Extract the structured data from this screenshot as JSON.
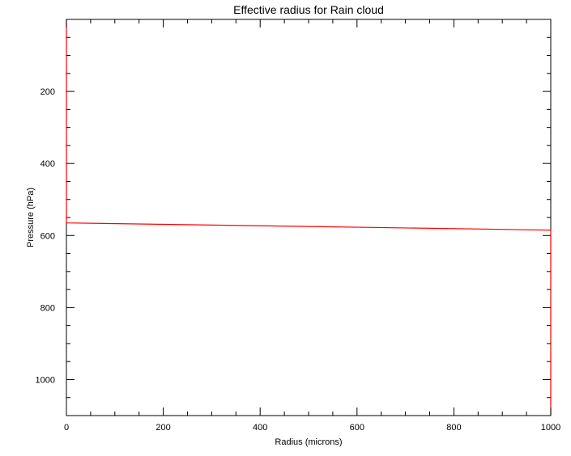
{
  "chart_data": {
    "type": "line",
    "title": "Effective radius for Rain cloud",
    "xlabel": "Radius (microns)",
    "ylabel": "Pressure (hPa)",
    "xlim": [
      0,
      1000
    ],
    "ylim": [
      1100,
      0
    ],
    "y_inverted": true,
    "grid": false,
    "legend": "none",
    "x_ticks": [
      0,
      200,
      400,
      600,
      800,
      1000
    ],
    "x_tick_labels": [
      "0",
      "200",
      "400",
      "600",
      "800",
      "1000"
    ],
    "y_ticks": [
      200,
      400,
      600,
      800,
      1000
    ],
    "y_tick_labels": [
      "200",
      "400",
      "600",
      "800",
      "1000"
    ],
    "series": [
      {
        "color": "#ff0000",
        "x": [
          0,
          0,
          1000,
          1000
        ],
        "y": [
          0,
          565,
          585,
          1100
        ]
      }
    ]
  },
  "colors": {
    "axis": "#000000",
    "series": "#ff0000",
    "background": "#ffffff"
  }
}
